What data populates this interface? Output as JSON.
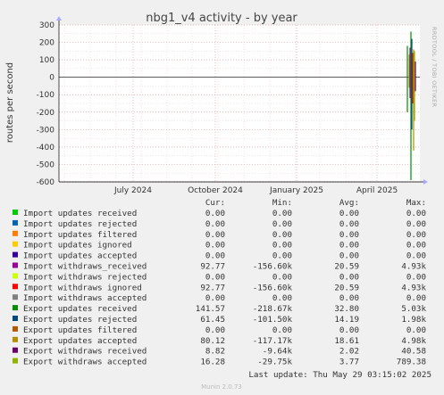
{
  "chart_data": {
    "type": "line",
    "title": "nbg1_v4 activity - by year",
    "ylabel": "routes per second",
    "side_text": "RRDTOOL / TOBI OETIKER",
    "ylim": [
      -600,
      300
    ],
    "y_ticks": [
      "300",
      "200",
      "100",
      "0",
      "-100",
      "-200",
      "-300",
      "-400",
      "-500",
      "-600"
    ],
    "y_tick_values": [
      300,
      200,
      100,
      0,
      -100,
      -200,
      -300,
      -400,
      -500,
      -600
    ],
    "x_ticks": [
      "July 2024",
      "October 2024",
      "January 2025",
      "April 2025"
    ],
    "grid": true,
    "columns": [
      "Cur:",
      "Min:",
      "Avg:",
      "Max:"
    ],
    "series": [
      {
        "name": "Import updates received",
        "color": "#00cc00",
        "cur": "0.00",
        "min": "0.00",
        "avg": "0.00",
        "max": "0.00"
      },
      {
        "name": "Import updates rejected",
        "color": "#0066b3",
        "cur": "0.00",
        "min": "0.00",
        "avg": "0.00",
        "max": "0.00"
      },
      {
        "name": "Import updates filtered",
        "color": "#ff8000",
        "cur": "0.00",
        "min": "0.00",
        "avg": "0.00",
        "max": "0.00"
      },
      {
        "name": "Import updates ignored",
        "color": "#ffcc00",
        "cur": "0.00",
        "min": "0.00",
        "avg": "0.00",
        "max": "0.00"
      },
      {
        "name": "Import updates accepted",
        "color": "#330099",
        "cur": "0.00",
        "min": "0.00",
        "avg": "0.00",
        "max": "0.00"
      },
      {
        "name": "Import withdraws_received",
        "color": "#990099",
        "cur": "92.77",
        "min": "-156.60k",
        "avg": "20.59",
        "max": "4.93k"
      },
      {
        "name": "Import withdraws rejected",
        "color": "#ccff00",
        "cur": "0.00",
        "min": "0.00",
        "avg": "0.00",
        "max": "0.00"
      },
      {
        "name": "Import withdraws ignored",
        "color": "#ff0000",
        "cur": "92.77",
        "min": "-156.60k",
        "avg": "20.59",
        "max": "4.93k"
      },
      {
        "name": "Import withdraws accepted",
        "color": "#808080",
        "cur": "0.00",
        "min": "0.00",
        "avg": "0.00",
        "max": "0.00"
      },
      {
        "name": "Export updates received",
        "color": "#008f00",
        "cur": "141.57",
        "min": "-218.67k",
        "avg": "32.80",
        "max": "5.03k"
      },
      {
        "name": "Export updates rejected",
        "color": "#00487d",
        "cur": "61.45",
        "min": "-101.50k",
        "avg": "14.19",
        "max": "1.98k"
      },
      {
        "name": "Export updates filtered",
        "color": "#b35a00",
        "cur": "0.00",
        "min": "0.00",
        "avg": "0.00",
        "max": "0.00"
      },
      {
        "name": "Export updates accepted",
        "color": "#b38f00",
        "cur": "80.12",
        "min": "-117.17k",
        "avg": "18.61",
        "max": "4.98k"
      },
      {
        "name": "Export withdraws received",
        "color": "#6b006b",
        "cur": "8.82",
        "min": "-9.64k",
        "avg": "2.02",
        "max": "40.58"
      },
      {
        "name": "Export withdraws accepted",
        "color": "#8fb300",
        "cur": "16.28",
        "min": "-29.75k",
        "avg": "3.77",
        "max": "789.38"
      }
    ],
    "last_update": "Last update: Thu May 29 03:15:02 2025",
    "footer": "Munin 2.0.73"
  }
}
